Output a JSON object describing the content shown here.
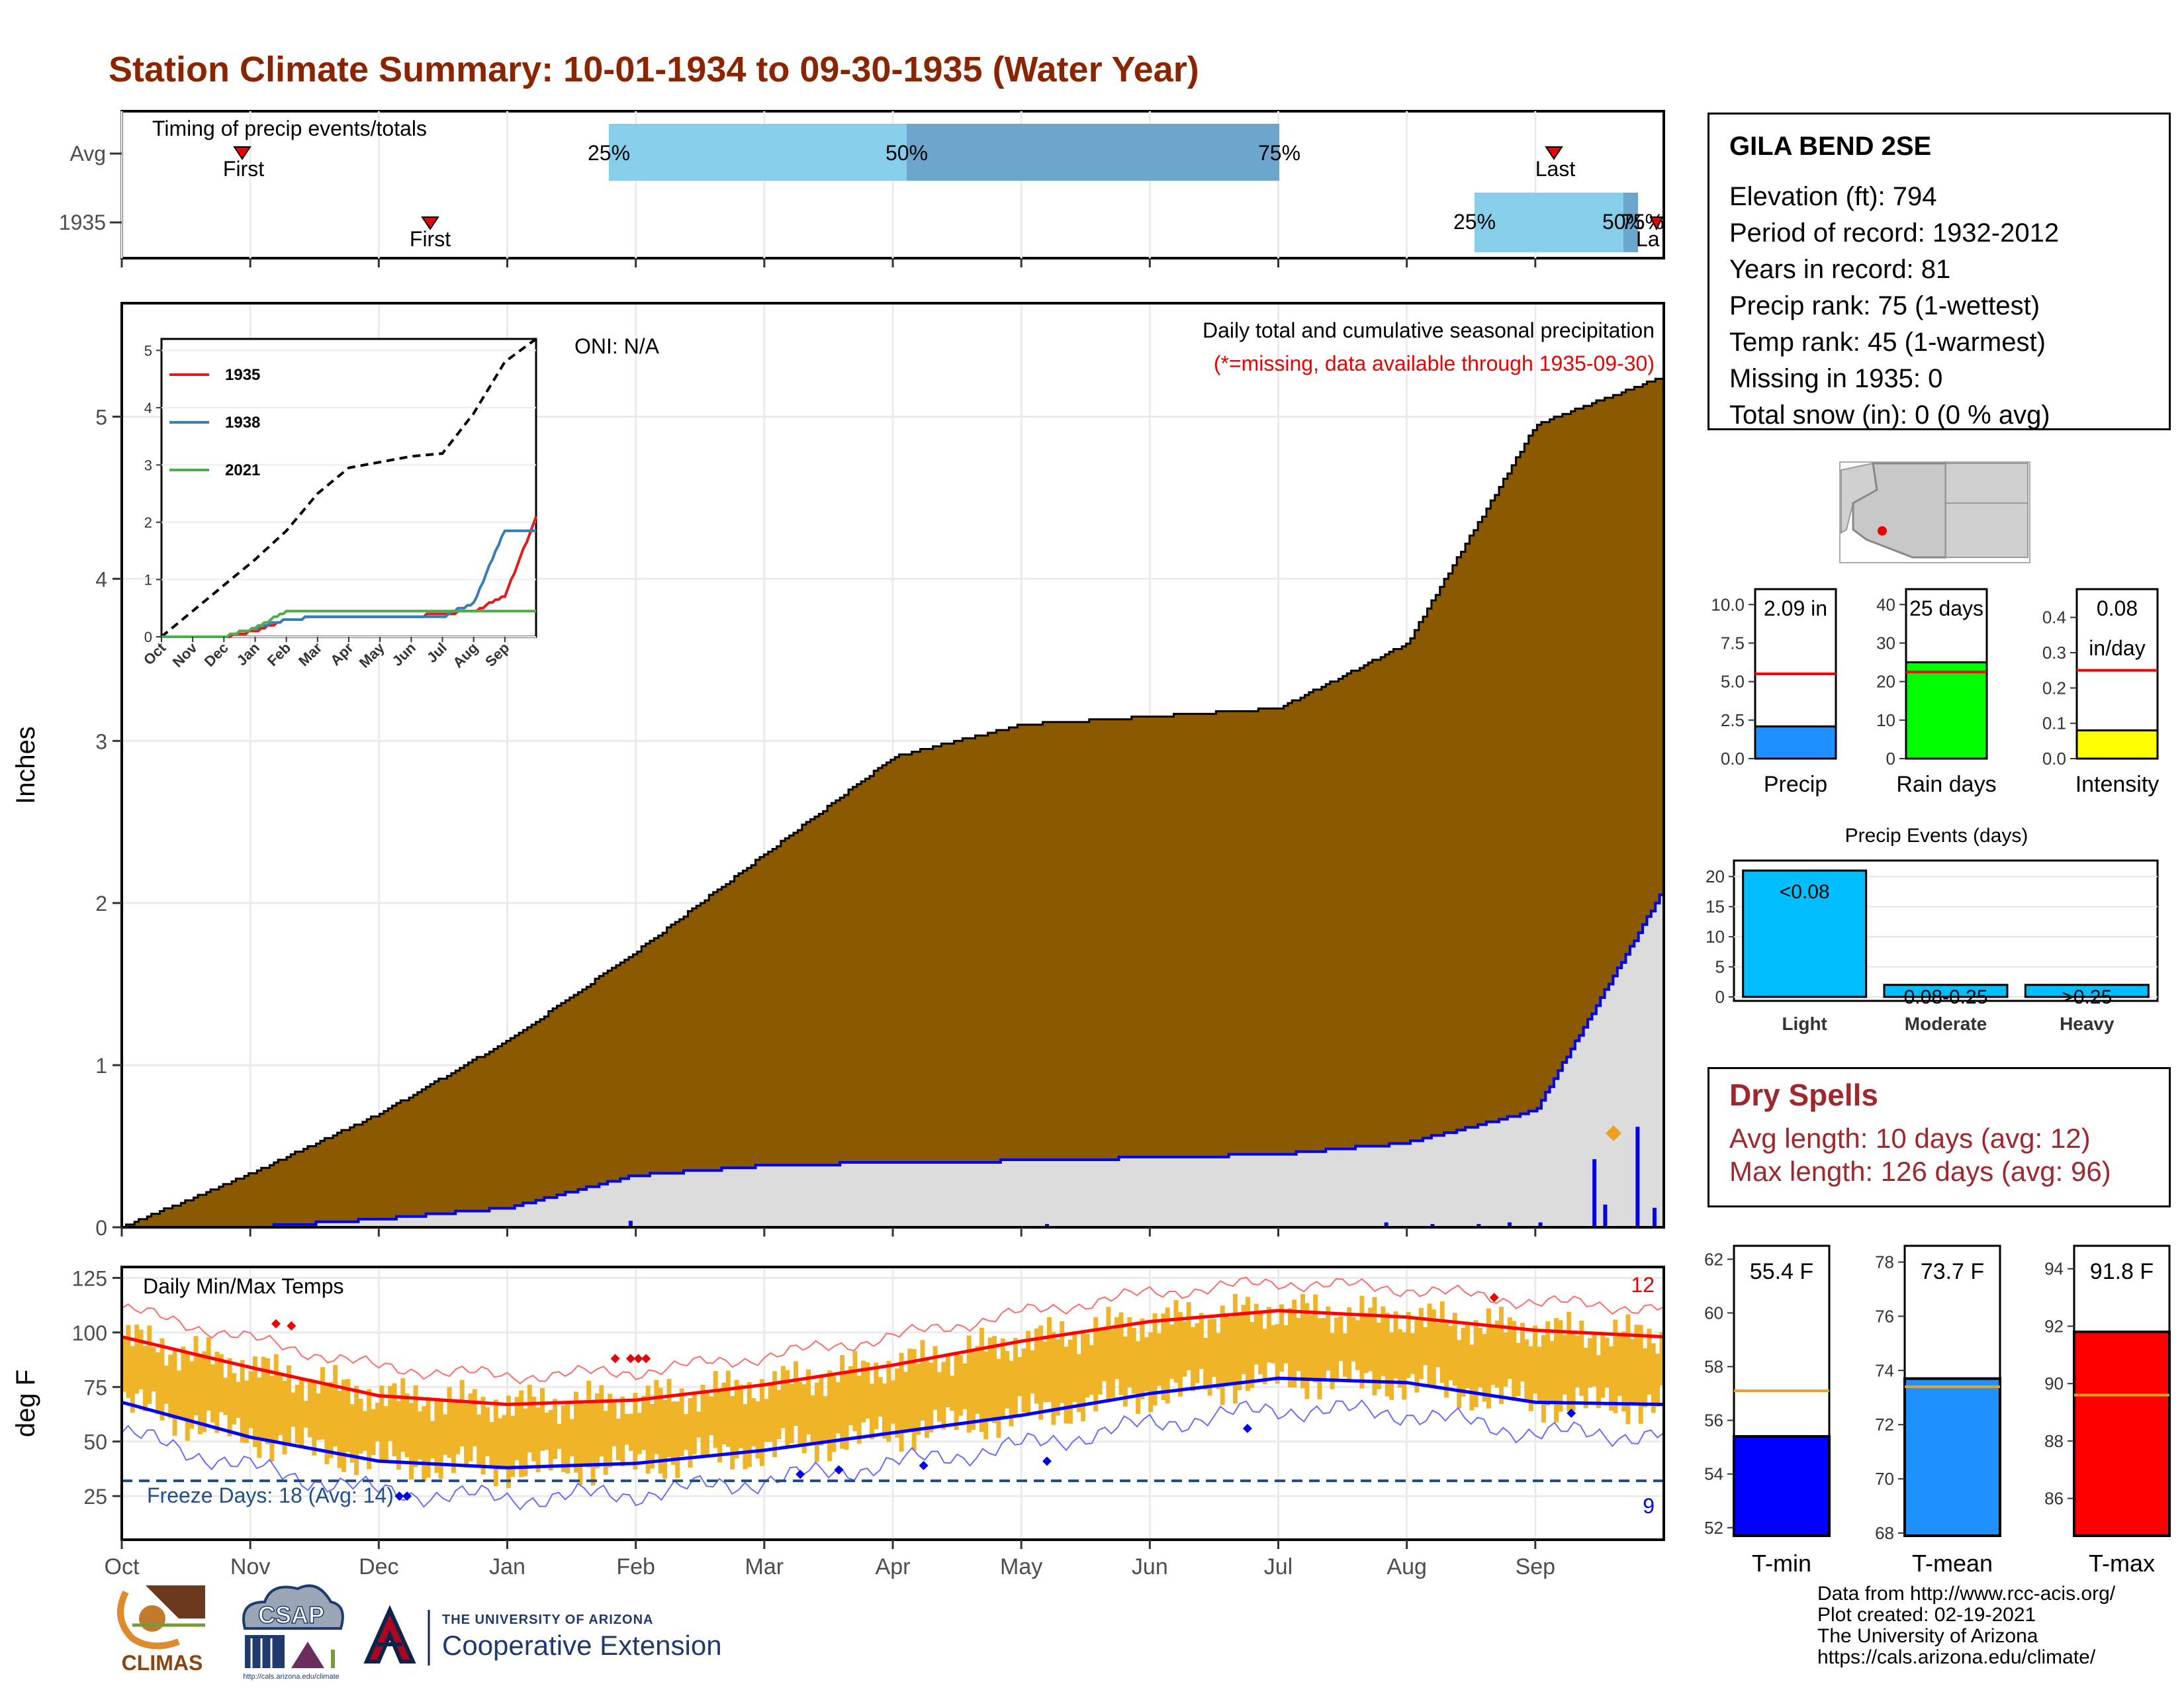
{
  "title": "Station Climate Summary: 10-01-1934 to 09-30-1935 (Water Year)",
  "colors": {
    "title": "#8B2500",
    "precip_fill": "#8B5A00",
    "quartile_light": "#87CEEB",
    "quartile_dark": "#6CA6CD",
    "temp_range": "#F0B429",
    "avg_max": "#FF0000",
    "avg_min": "#0000FF",
    "dry": "#A0282D"
  },
  "timing_panel": {
    "label": "Timing of precip events/totals",
    "rows": [
      "Avg",
      "1935"
    ],
    "avg": {
      "first_label": "First",
      "last_label": "Last",
      "q25": "25%",
      "q50": "50%",
      "q75": "75%"
    },
    "y1935": {
      "first_label": "First",
      "last_label": "La",
      "q25": "25%",
      "q50": "50%",
      "q75": "75%"
    }
  },
  "precip_panel": {
    "ylabel": "Inches",
    "oni": "ONI: N/A",
    "heading": "Daily total and cumulative seasonal precipitation",
    "note": "(*=missing, data available through 1935-09-30)",
    "yticks": [
      "0",
      "1",
      "2",
      "3",
      "4",
      "5"
    ]
  },
  "inset": {
    "legend": [
      "1935",
      "1938",
      "2021"
    ],
    "legend_colors": [
      "#E41A1C",
      "#377EB8",
      "#4DAF4A"
    ],
    "yticks": [
      "0",
      "1",
      "2",
      "3",
      "4",
      "5"
    ],
    "months": [
      "Oct",
      "Nov",
      "Dec",
      "Jan",
      "Feb",
      "Mar",
      "Apr",
      "May",
      "Jun",
      "Jul",
      "Aug",
      "Sep"
    ]
  },
  "temp_panel": {
    "ylabel": "deg F",
    "label": "Daily Min/Max Temps",
    "yticks": [
      "25",
      "50",
      "75",
      "100",
      "125"
    ],
    "freeze": "Freeze Days: 18 (Avg: 14)",
    "max_record_count": "12",
    "min_record_count": "9"
  },
  "x_months": [
    "Oct",
    "Nov",
    "Dec",
    "Jan",
    "Feb",
    "Mar",
    "Apr",
    "May",
    "Jun",
    "Jul",
    "Aug",
    "Sep"
  ],
  "station": {
    "name": "GILA BEND 2SE",
    "lines": [
      "Elevation (ft): 794",
      "Period of record: 1932-2012",
      "Years in record: 81",
      "Precip rank: 75 (1-wettest)",
      "Temp rank: 45 (1-warmest)",
      "Missing in 1935: 0",
      "Total snow (in): 0 (0 % avg)"
    ]
  },
  "mini_bars": [
    {
      "label": "Precip",
      "value_text": "2.09 in",
      "color": "#1E90FF",
      "yticks": [
        "0.0",
        "2.5",
        "5.0",
        "7.5",
        "10.0"
      ]
    },
    {
      "label": "Rain days",
      "value_text": "25 days",
      "color": "#00FF00",
      "yticks": [
        "0",
        "10",
        "20",
        "30",
        "40"
      ]
    },
    {
      "label": "Intensity",
      "value_text": "0.08",
      "value_text2": "in/day",
      "color": "#FFFF00",
      "yticks": [
        "0.0",
        "0.1",
        "0.2",
        "0.3",
        "0.4"
      ]
    }
  ],
  "events": {
    "title": "Precip Events (days)",
    "categories": [
      "Light",
      "Moderate",
      "Heavy"
    ],
    "bar_labels": [
      "<0.08",
      "0.08-0.25",
      ">0.25"
    ],
    "yticks": [
      "0",
      "5",
      "10",
      "15",
      "20"
    ]
  },
  "dry_spells": {
    "title": "Dry Spells",
    "avg": "Avg length: 10 days (avg: 12)",
    "max": "Max length: 126 days (avg: 96)"
  },
  "temp_bars": [
    {
      "label": "T-min",
      "value_text": "55.4 F",
      "color": "#0000FF",
      "yticks": [
        "52",
        "54",
        "56",
        "58",
        "60",
        "62"
      ]
    },
    {
      "label": "T-mean",
      "value_text": "73.7 F",
      "color": "#1E90FF",
      "yticks": [
        "68",
        "70",
        "72",
        "74",
        "76",
        "78"
      ]
    },
    {
      "label": "T-max",
      "value_text": "91.8 F",
      "color": "#FF0000",
      "yticks": [
        "86",
        "88",
        "90",
        "92",
        "94"
      ]
    }
  ],
  "credits": [
    "Data from http://www.rcc-acis.org/",
    "Plot created: 02-19-2021",
    "The University of Arizona",
    "https://cals.arizona.edu/climate/"
  ],
  "logos": {
    "climas": "CLIMAS",
    "csap": "CSAP",
    "csap_url": "http://cals.arizona.edu/climate",
    "ua_small": "THE UNIVERSITY OF ARIZONA",
    "ua_big": "Cooperative Extension"
  },
  "chart_data": [
    {
      "type": "area",
      "title": "Daily total and cumulative seasonal precipitation",
      "ylabel": "Inches",
      "ylim": [
        0,
        5.7
      ],
      "series": [
        {
          "name": "Avg cumulative",
          "x": [
            "Oct",
            "Nov",
            "Dec",
            "Jan",
            "Feb",
            "Mar",
            "Apr",
            "May",
            "Jun",
            "Jul",
            "Aug",
            "Sep",
            "Sep end"
          ],
          "values": [
            0.0,
            0.33,
            0.7,
            1.15,
            1.7,
            2.3,
            2.9,
            3.1,
            3.15,
            3.2,
            3.6,
            4.95,
            5.25
          ]
        },
        {
          "name": "1935 cumulative",
          "x": [
            "Oct",
            "Nov",
            "Dec",
            "Jan",
            "Feb",
            "Mar",
            "Apr",
            "May",
            "Jun",
            "Jul",
            "Aug",
            "Sep",
            "Sep end"
          ],
          "values": [
            0.0,
            0.0,
            0.05,
            0.12,
            0.32,
            0.38,
            0.4,
            0.41,
            0.43,
            0.45,
            0.52,
            0.72,
            2.09
          ]
        }
      ]
    },
    {
      "type": "line",
      "title": "",
      "xlabel": "",
      "ylabel": "deg F",
      "ylim": [
        5,
        130
      ],
      "series": [
        {
          "name": "Avg max",
          "x": [
            "Oct",
            "Nov",
            "Dec",
            "Jan",
            "Feb",
            "Mar",
            "Apr",
            "May",
            "Jun",
            "Jul",
            "Aug",
            "Sep"
          ],
          "values": [
            98,
            84,
            71,
            67,
            69,
            76,
            85,
            96,
            105,
            110,
            107,
            101
          ]
        },
        {
          "name": "Avg min",
          "x": [
            "Oct",
            "Nov",
            "Dec",
            "Jan",
            "Feb",
            "Mar",
            "Apr",
            "May",
            "Jun",
            "Jul",
            "Aug",
            "Sep"
          ],
          "values": [
            68,
            52,
            41,
            38,
            40,
            46,
            54,
            62,
            72,
            79,
            77,
            68
          ]
        },
        {
          "name": "Freeze line",
          "x": [
            "Oct",
            "Sep"
          ],
          "values": [
            32,
            32
          ]
        }
      ]
    },
    {
      "type": "bar",
      "title": "Precip Events (days)",
      "categories": [
        "Light",
        "Moderate",
        "Heavy"
      ],
      "values": [
        21,
        2,
        2
      ],
      "ylim": [
        0,
        22
      ]
    },
    {
      "type": "bar",
      "categories": [
        "Precip",
        "Rain days",
        "Intensity"
      ],
      "values": [
        2.09,
        25,
        0.08
      ],
      "averages": [
        5.5,
        22.5,
        0.25
      ],
      "ylims": [
        [
          0,
          11
        ],
        [
          0,
          44
        ],
        [
          0,
          0.48
        ]
      ]
    },
    {
      "type": "bar",
      "categories": [
        "T-min",
        "T-mean",
        "T-max"
      ],
      "values": [
        55.4,
        73.7,
        91.8
      ],
      "averages": [
        57.1,
        73.4,
        89.6
      ],
      "ylims": [
        [
          51.7,
          62.5
        ],
        [
          67.9,
          78.6
        ],
        [
          84.7,
          94.8
        ]
      ]
    },
    {
      "type": "line",
      "title": "",
      "legend": "top-left",
      "ylim": [
        0,
        5.2
      ],
      "x": [
        "Oct",
        "Nov",
        "Dec",
        "Jan",
        "Feb",
        "Mar",
        "Apr",
        "May",
        "Jun",
        "Jul",
        "Aug",
        "Sep",
        "Sep end"
      ],
      "series": [
        {
          "name": "",
          "values": [
            0.0,
            0.45,
            0.9,
            1.35,
            1.85,
            2.5,
            2.95,
            3.05,
            3.15,
            3.2,
            3.9,
            4.8,
            5.2
          ]
        },
        {
          "name": "1935",
          "values": [
            0.0,
            0.0,
            0.0,
            0.1,
            0.3,
            0.35,
            0.35,
            0.35,
            0.35,
            0.4,
            0.45,
            0.7,
            2.09
          ]
        },
        {
          "name": "1938",
          "values": [
            0.0,
            0.0,
            0.0,
            0.15,
            0.3,
            0.35,
            0.35,
            0.35,
            0.35,
            0.35,
            0.6,
            1.85,
            1.85
          ]
        },
        {
          "name": "2021",
          "values": [
            0.0,
            0.0,
            0.0,
            0.15,
            0.45,
            0.45,
            0.45,
            0.45,
            0.45,
            0.45,
            0.45,
            0.45,
            0.45
          ]
        }
      ]
    }
  ]
}
